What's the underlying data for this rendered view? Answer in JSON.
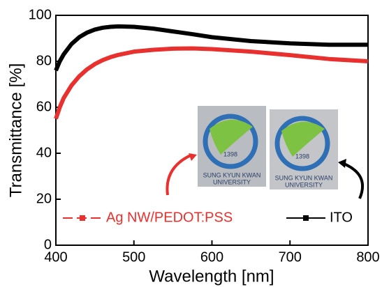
{
  "chart_data": {
    "type": "line",
    "xlabel": "Wavelength [nm]",
    "ylabel": "Transmittance [%]",
    "x": [
      400,
      405,
      410,
      420,
      430,
      440,
      450,
      460,
      470,
      480,
      500,
      525,
      550,
      575,
      600,
      650,
      700,
      750,
      800
    ],
    "series": [
      {
        "name": "Ag NW/PEDOT:PSS",
        "color": "#e8312f",
        "values": [
          55,
          60,
          64,
          69.5,
          73.5,
          76.5,
          78.8,
          80.5,
          81.8,
          82.8,
          84.2,
          85,
          85.5,
          85.6,
          85.3,
          84.2,
          82.7,
          81,
          80
        ]
      },
      {
        "name": "ITO",
        "color": "#000000",
        "values": [
          76,
          80,
          83,
          87.5,
          90.5,
          92.5,
          93.8,
          94.6,
          95,
          95.2,
          95,
          94.2,
          93,
          91.8,
          90.5,
          88.8,
          87.8,
          87.2,
          87.2
        ]
      }
    ],
    "xlim": [
      400,
      800
    ],
    "xticks": [
      400,
      500,
      600,
      700,
      800
    ],
    "ylim": [
      0,
      100
    ],
    "yticks": [
      0,
      20,
      40,
      60,
      80,
      100
    ],
    "legend": "bottom",
    "insets": [
      {
        "number": "1398",
        "text": [
          "SUNG KYUN KWAN",
          "UNIVERSITY"
        ]
      },
      {
        "number": "1398",
        "text": [
          "SUNG KYUN KWAN",
          "UNIVERSITY"
        ]
      }
    ]
  }
}
